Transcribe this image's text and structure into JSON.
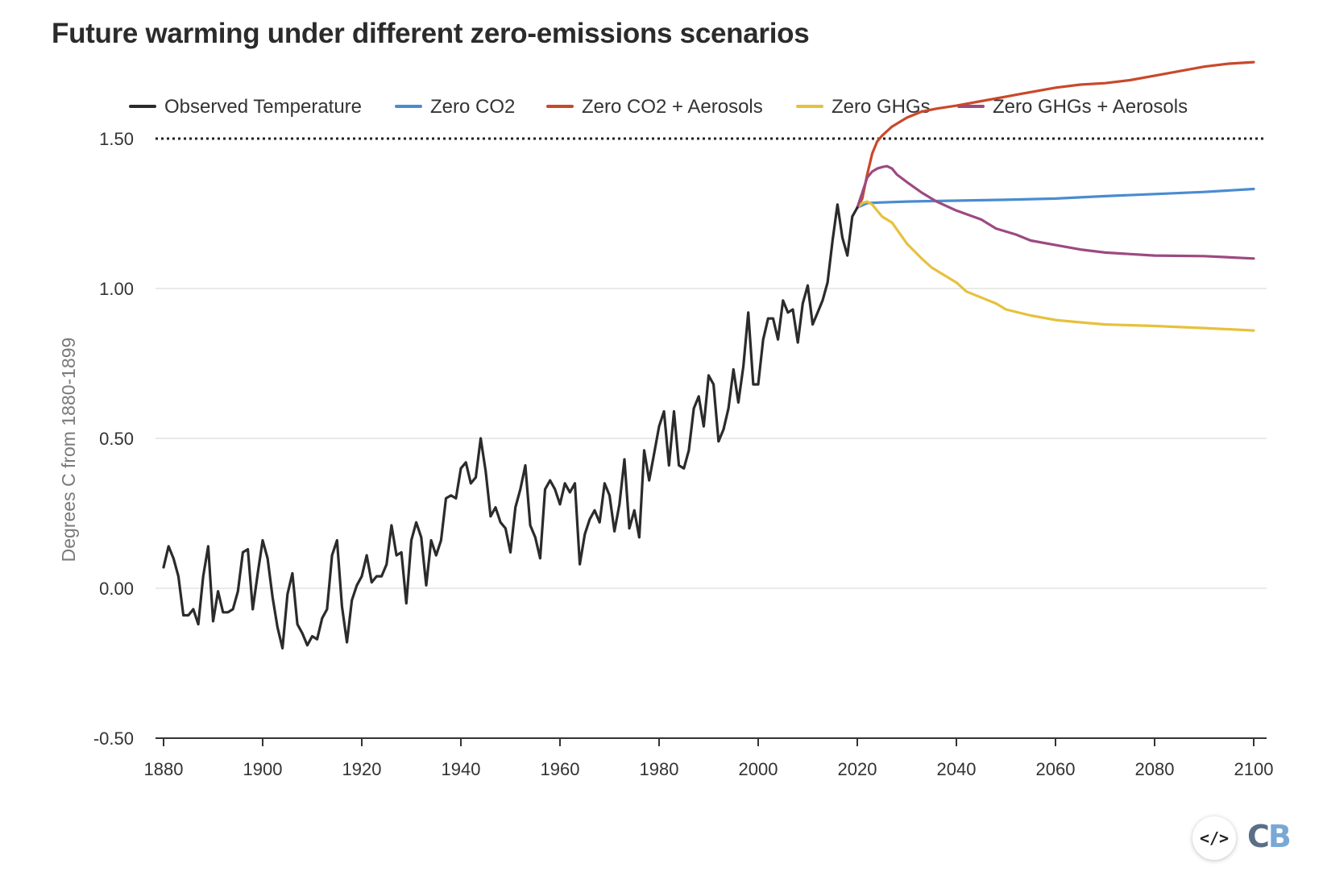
{
  "chart_data": {
    "type": "line",
    "title": "Future warming under different zero-emissions scenarios",
    "ylabel": "Degrees C from 1880-1899",
    "xlabel": "",
    "xlim": [
      1880,
      2100
    ],
    "ylim": [
      -0.5,
      1.8
    ],
    "x_ticks": [
      1880,
      1900,
      1920,
      1940,
      1960,
      1980,
      2000,
      2020,
      2040,
      2060,
      2080,
      2100
    ],
    "y_ticks": [
      -0.5,
      0,
      0.5,
      1,
      1.5
    ],
    "y_tick_labels": [
      "-0.50",
      "0.00",
      "0.50",
      "1.00",
      "1.50"
    ],
    "grid": "horizontal",
    "reference_line": {
      "y": 1.5,
      "style": "dotted"
    },
    "legend_position": "top",
    "series": [
      {
        "name": "Observed Temperature",
        "color": "#2b2b2b",
        "x": [
          1880,
          1881,
          1882,
          1883,
          1884,
          1885,
          1886,
          1887,
          1888,
          1889,
          1890,
          1891,
          1892,
          1893,
          1894,
          1895,
          1896,
          1897,
          1898,
          1899,
          1900,
          1901,
          1902,
          1903,
          1904,
          1905,
          1906,
          1907,
          1908,
          1909,
          1910,
          1911,
          1912,
          1913,
          1914,
          1915,
          1916,
          1917,
          1918,
          1919,
          1920,
          1921,
          1922,
          1923,
          1924,
          1925,
          1926,
          1927,
          1928,
          1929,
          1930,
          1931,
          1932,
          1933,
          1934,
          1935,
          1936,
          1937,
          1938,
          1939,
          1940,
          1941,
          1942,
          1943,
          1944,
          1945,
          1946,
          1947,
          1948,
          1949,
          1950,
          1951,
          1952,
          1953,
          1954,
          1955,
          1956,
          1957,
          1958,
          1959,
          1960,
          1961,
          1962,
          1963,
          1964,
          1965,
          1966,
          1967,
          1968,
          1969,
          1970,
          1971,
          1972,
          1973,
          1974,
          1975,
          1976,
          1977,
          1978,
          1979,
          1980,
          1981,
          1982,
          1983,
          1984,
          1985,
          1986,
          1987,
          1988,
          1989,
          1990,
          1991,
          1992,
          1993,
          1994,
          1995,
          1996,
          1997,
          1998,
          1999,
          2000,
          2001,
          2002,
          2003,
          2004,
          2005,
          2006,
          2007,
          2008,
          2009,
          2010,
          2011,
          2012,
          2013,
          2014,
          2015,
          2016,
          2017,
          2018,
          2019,
          2020
        ],
        "values": [
          0.07,
          0.14,
          0.1,
          0.04,
          -0.09,
          -0.09,
          -0.07,
          -0.12,
          0.04,
          0.14,
          -0.11,
          -0.01,
          -0.08,
          -0.08,
          -0.07,
          -0.01,
          0.12,
          0.13,
          -0.07,
          0.05,
          0.16,
          0.1,
          -0.03,
          -0.13,
          -0.2,
          -0.02,
          0.05,
          -0.12,
          -0.15,
          -0.19,
          -0.16,
          -0.17,
          -0.1,
          -0.07,
          0.11,
          0.16,
          -0.06,
          -0.18,
          -0.04,
          0.01,
          0.04,
          0.11,
          0.02,
          0.04,
          0.04,
          0.08,
          0.21,
          0.11,
          0.12,
          -0.05,
          0.16,
          0.22,
          0.17,
          0.01,
          0.16,
          0.11,
          0.16,
          0.3,
          0.31,
          0.3,
          0.4,
          0.42,
          0.35,
          0.37,
          0.5,
          0.39,
          0.24,
          0.27,
          0.22,
          0.2,
          0.12,
          0.27,
          0.33,
          0.41,
          0.21,
          0.17,
          0.1,
          0.33,
          0.36,
          0.33,
          0.28,
          0.35,
          0.32,
          0.35,
          0.08,
          0.18,
          0.23,
          0.26,
          0.22,
          0.35,
          0.31,
          0.19,
          0.28,
          0.43,
          0.2,
          0.26,
          0.17,
          0.46,
          0.36,
          0.45,
          0.54,
          0.59,
          0.41,
          0.59,
          0.41,
          0.4,
          0.46,
          0.6,
          0.64,
          0.54,
          0.71,
          0.68,
          0.49,
          0.53,
          0.6,
          0.73,
          0.62,
          0.74,
          0.92,
          0.68,
          0.68,
          0.83,
          0.9,
          0.9,
          0.83,
          0.96,
          0.92,
          0.93,
          0.82,
          0.95,
          1.01,
          0.88,
          0.92,
          0.96,
          1.02,
          1.16,
          1.28,
          1.17,
          1.11,
          1.24,
          1.27
        ]
      },
      {
        "name": "Zero CO2",
        "color": "#4a8ccf",
        "x": [
          2020,
          2022,
          2025,
          2030,
          2040,
          2050,
          2060,
          2070,
          2080,
          2090,
          2100
        ],
        "values": [
          1.27,
          1.285,
          1.287,
          1.29,
          1.293,
          1.296,
          1.3,
          1.308,
          1.315,
          1.322,
          1.332
        ]
      },
      {
        "name": "Zero CO2 + Aerosols",
        "color": "#c8492a",
        "x": [
          2020,
          2021,
          2022,
          2023,
          2024,
          2025,
          2027,
          2030,
          2033,
          2036,
          2040,
          2045,
          2050,
          2055,
          2060,
          2065,
          2070,
          2075,
          2080,
          2085,
          2090,
          2095,
          2100
        ],
        "values": [
          1.27,
          1.3,
          1.38,
          1.45,
          1.49,
          1.51,
          1.54,
          1.57,
          1.59,
          1.6,
          1.61,
          1.625,
          1.64,
          1.655,
          1.67,
          1.68,
          1.685,
          1.695,
          1.71,
          1.725,
          1.74,
          1.75,
          1.755
        ]
      },
      {
        "name": "Zero GHGs",
        "color": "#e6c13d",
        "x": [
          2020,
          2021,
          2022,
          2023,
          2024,
          2025,
          2027,
          2030,
          2033,
          2035,
          2038,
          2040,
          2042,
          2045,
          2048,
          2050,
          2055,
          2060,
          2065,
          2070,
          2080,
          2090,
          2100
        ],
        "values": [
          1.27,
          1.285,
          1.29,
          1.28,
          1.26,
          1.24,
          1.22,
          1.15,
          1.1,
          1.07,
          1.04,
          1.02,
          0.99,
          0.97,
          0.95,
          0.93,
          0.91,
          0.895,
          0.887,
          0.88,
          0.875,
          0.868,
          0.86
        ]
      },
      {
        "name": "Zero GHGs + Aerosols",
        "color": "#9c4a82",
        "x": [
          2020,
          2021,
          2022,
          2023,
          2024,
          2025,
          2026,
          2027,
          2028,
          2030,
          2033,
          2036,
          2040,
          2045,
          2048,
          2052,
          2055,
          2060,
          2065,
          2070,
          2080,
          2090,
          2100
        ],
        "values": [
          1.27,
          1.32,
          1.37,
          1.39,
          1.4,
          1.405,
          1.408,
          1.4,
          1.38,
          1.355,
          1.32,
          1.29,
          1.26,
          1.23,
          1.2,
          1.18,
          1.16,
          1.145,
          1.13,
          1.12,
          1.11,
          1.108,
          1.1
        ]
      }
    ]
  },
  "embed_label": "</>",
  "logo_text": {
    "c": "C",
    "b": "B"
  }
}
